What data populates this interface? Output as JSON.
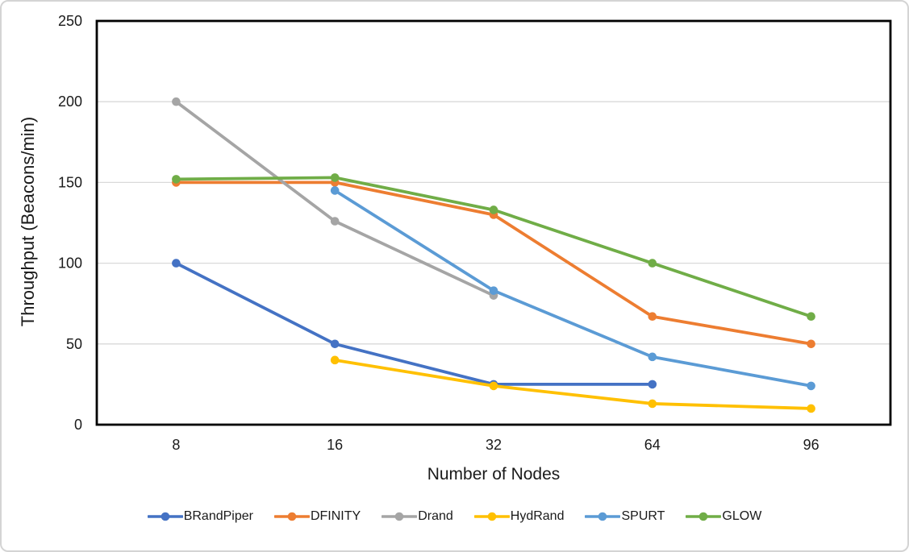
{
  "chart_data": {
    "type": "line",
    "title": "",
    "xlabel": "Number of Nodes",
    "ylabel": "Throughput (Beacons/min)",
    "categories": [
      "8",
      "16",
      "32",
      "64",
      "96"
    ],
    "ylim": [
      0,
      250
    ],
    "yticks": [
      0,
      50,
      100,
      150,
      200,
      250
    ],
    "grid": true,
    "legend_position": "bottom",
    "series": [
      {
        "name": "BRandPiper",
        "color": "#4472C4",
        "values": [
          100,
          50,
          25,
          25,
          null
        ]
      },
      {
        "name": "DFINITY",
        "color": "#ED7D31",
        "values": [
          150,
          150,
          130,
          67,
          50
        ]
      },
      {
        "name": "Drand",
        "color": "#A5A5A5",
        "values": [
          200,
          126,
          80,
          null,
          null
        ]
      },
      {
        "name": "HydRand",
        "color": "#FFC000",
        "values": [
          null,
          40,
          24,
          13,
          10
        ]
      },
      {
        "name": "SPURT",
        "color": "#5B9BD5",
        "values": [
          null,
          145,
          83,
          42,
          24
        ]
      },
      {
        "name": "GLOW",
        "color": "#70AD47",
        "values": [
          152,
          153,
          133,
          100,
          67
        ]
      }
    ]
  },
  "style": {
    "grid_color": "#D9D9D9",
    "axis_color": "#000000",
    "text_color": "#1A1A1A",
    "figure_border_color": "#D4D4D4"
  }
}
